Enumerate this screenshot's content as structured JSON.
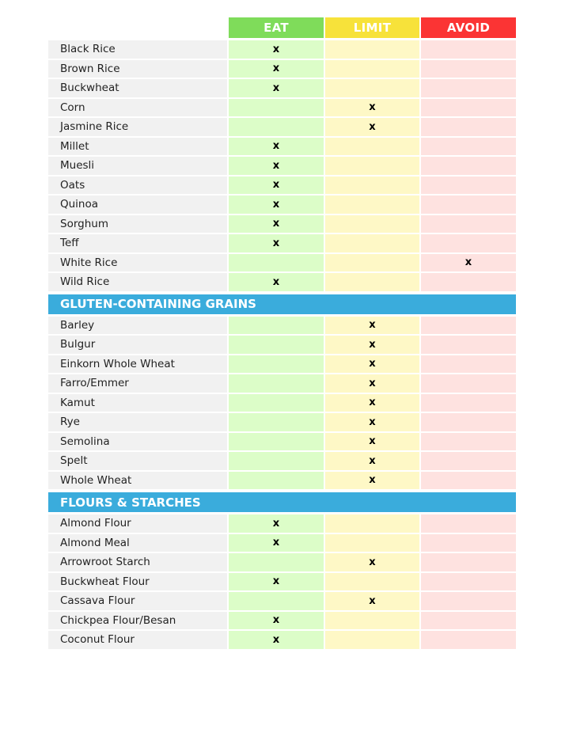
{
  "columns": {
    "eat": "EAT",
    "limit": "LIMIT",
    "avoid": "AVOID"
  },
  "colors": {
    "eat": "#7fdc5a",
    "limit": "#f7e23a",
    "avoid": "#fb3434",
    "section": "#3aacdc"
  },
  "mark": "x",
  "groups": [
    {
      "title": null,
      "rows": [
        {
          "name": "Black Rice",
          "v": "eat"
        },
        {
          "name": "Brown Rice",
          "v": "eat"
        },
        {
          "name": "Buckwheat",
          "v": "eat"
        },
        {
          "name": "Corn",
          "v": "limit"
        },
        {
          "name": "Jasmine Rice",
          "v": "limit"
        },
        {
          "name": "Millet",
          "v": "eat"
        },
        {
          "name": "Muesli",
          "v": "eat"
        },
        {
          "name": "Oats",
          "v": "eat"
        },
        {
          "name": "Quinoa",
          "v": "eat"
        },
        {
          "name": "Sorghum",
          "v": "eat"
        },
        {
          "name": "Teff",
          "v": "eat"
        },
        {
          "name": "White Rice",
          "v": "avoid"
        },
        {
          "name": "Wild Rice",
          "v": "eat"
        }
      ]
    },
    {
      "title": "GLUTEN-CONTAINING GRAINS",
      "rows": [
        {
          "name": "Barley",
          "v": "limit"
        },
        {
          "name": "Bulgur",
          "v": "limit"
        },
        {
          "name": "Einkorn Whole Wheat",
          "v": "limit"
        },
        {
          "name": "Farro/Emmer",
          "v": "limit"
        },
        {
          "name": "Kamut",
          "v": "limit"
        },
        {
          "name": "Rye",
          "v": "limit"
        },
        {
          "name": "Semolina",
          "v": "limit"
        },
        {
          "name": "Spelt",
          "v": "limit"
        },
        {
          "name": "Whole Wheat",
          "v": "limit"
        }
      ]
    },
    {
      "title": "FLOURS & STARCHES",
      "rows": [
        {
          "name": "Almond Flour",
          "v": "eat"
        },
        {
          "name": "Almond Meal",
          "v": "eat"
        },
        {
          "name": "Arrowroot Starch",
          "v": "limit"
        },
        {
          "name": "Buckwheat Flour",
          "v": "eat"
        },
        {
          "name": "Cassava Flour",
          "v": "limit"
        },
        {
          "name": "Chickpea Flour/Besan",
          "v": "eat"
        },
        {
          "name": "Coconut Flour",
          "v": "eat"
        }
      ]
    }
  ]
}
